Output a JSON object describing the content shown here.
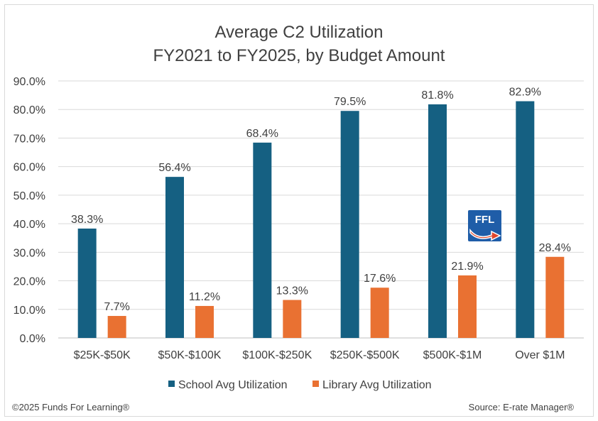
{
  "chart_data": {
    "type": "bar",
    "title": "Average C2 Utilization",
    "subtitle": "FY2021 to FY2025, by Budget Amount",
    "xlabel": "",
    "ylabel": "",
    "ylim": [
      0,
      90
    ],
    "y_ticks": [
      "0.0%",
      "10.0%",
      "20.0%",
      "30.0%",
      "40.0%",
      "50.0%",
      "60.0%",
      "70.0%",
      "80.0%",
      "90.0%"
    ],
    "grid": true,
    "legend_position": "bottom",
    "categories": [
      "$25K-$50K",
      "$50K-$100K",
      "$100K-$250K",
      "$250K-$500K",
      "$500K-$1M",
      "Over $1M"
    ],
    "series": [
      {
        "name": "School Avg Utilization",
        "color": "#156082",
        "values": [
          38.3,
          56.4,
          68.4,
          79.5,
          81.8,
          82.9
        ],
        "labels": [
          "38.3%",
          "56.4%",
          "68.4%",
          "79.5%",
          "81.8%",
          "82.9%"
        ]
      },
      {
        "name": "Library Avg Utilization",
        "color": "#E97132",
        "values": [
          7.7,
          11.2,
          13.3,
          17.6,
          21.9,
          28.4
        ],
        "labels": [
          "7.7%",
          "11.2%",
          "13.3%",
          "17.6%",
          "21.9%",
          "28.4%"
        ]
      }
    ]
  },
  "logo": {
    "text": "FFL",
    "icon": "ffl-logo-arrow-icon",
    "color": "#1F5DA8",
    "arrow_color": "#E0462C"
  },
  "footer": {
    "copyright": "©2025 Funds For Learning®",
    "source": "Source: E-rate Manager®"
  }
}
